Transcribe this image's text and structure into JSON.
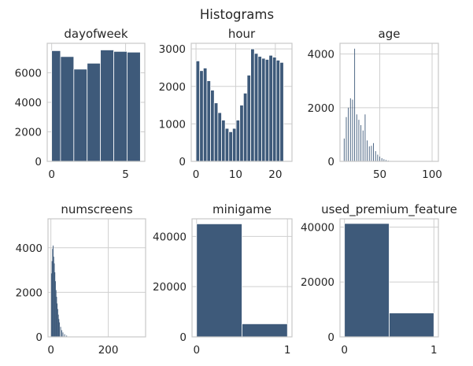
{
  "figure": {
    "suptitle": "Histograms"
  },
  "chart_data": [
    {
      "type": "bar",
      "title": "dayofweek",
      "xlabel": "",
      "ylabel": "",
      "xlim": [
        -0.3,
        6.3
      ],
      "ylim": [
        0,
        8000
      ],
      "xticks": [
        0,
        5
      ],
      "yticks": [
        0,
        2000,
        4000,
        6000
      ],
      "grid": true,
      "bins": [
        {
          "x0": 0.0,
          "x1": 0.6,
          "value": 7500
        },
        {
          "x0": 0.6,
          "x1": 1.5,
          "value": 7100
        },
        {
          "x0": 1.5,
          "x1": 2.4,
          "value": 6250
        },
        {
          "x0": 2.4,
          "x1": 3.3,
          "value": 6650
        },
        {
          "x0": 3.3,
          "x1": 4.2,
          "value": 7550
        },
        {
          "x0": 4.2,
          "x1": 5.1,
          "value": 7450
        },
        {
          "x0": 5.1,
          "x1": 6.0,
          "value": 7400
        }
      ]
    },
    {
      "type": "bar",
      "title": "hour",
      "xlabel": "",
      "ylabel": "",
      "xlim": [
        -1.2,
        24.2
      ],
      "ylim": [
        0,
        3150
      ],
      "xticks": [
        0,
        10,
        20
      ],
      "yticks": [
        0,
        1000,
        2000,
        3000
      ],
      "grid": true,
      "bins": [
        {
          "x0": 0.0,
          "x1": 0.92,
          "value": 2680
        },
        {
          "x0": 0.92,
          "x1": 1.84,
          "value": 2420
        },
        {
          "x0": 1.84,
          "x1": 2.76,
          "value": 2490
        },
        {
          "x0": 2.76,
          "x1": 3.68,
          "value": 2150
        },
        {
          "x0": 3.68,
          "x1": 4.6,
          "value": 1900
        },
        {
          "x0": 4.6,
          "x1": 5.52,
          "value": 1560
        },
        {
          "x0": 5.52,
          "x1": 6.44,
          "value": 1300
        },
        {
          "x0": 6.44,
          "x1": 7.36,
          "value": 1100
        },
        {
          "x0": 7.36,
          "x1": 8.28,
          "value": 880
        },
        {
          "x0": 8.28,
          "x1": 9.2,
          "value": 790
        },
        {
          "x0": 9.2,
          "x1": 10.12,
          "value": 880
        },
        {
          "x0": 10.12,
          "x1": 11.04,
          "value": 1100
        },
        {
          "x0": 11.04,
          "x1": 11.96,
          "value": 1500
        },
        {
          "x0": 11.96,
          "x1": 12.88,
          "value": 1820
        },
        {
          "x0": 12.88,
          "x1": 13.8,
          "value": 2300
        },
        {
          "x0": 13.8,
          "x1": 14.72,
          "value": 3000
        },
        {
          "x0": 14.72,
          "x1": 15.64,
          "value": 2880
        },
        {
          "x0": 15.64,
          "x1": 16.56,
          "value": 2800
        },
        {
          "x0": 16.56,
          "x1": 17.48,
          "value": 2750
        },
        {
          "x0": 17.48,
          "x1": 18.4,
          "value": 2720
        },
        {
          "x0": 18.4,
          "x1": 19.32,
          "value": 2830
        },
        {
          "x0": 19.32,
          "x1": 20.24,
          "value": 2780
        },
        {
          "x0": 20.24,
          "x1": 21.16,
          "value": 2700
        },
        {
          "x0": 21.16,
          "x1": 22.08,
          "value": 2640
        }
      ]
    },
    {
      "type": "bar",
      "title": "age",
      "xlabel": "",
      "ylabel": "",
      "xlim": [
        12,
        106
      ],
      "ylim": [
        0,
        4400
      ],
      "xticks": [
        50,
        100
      ],
      "yticks": [
        0,
        2000,
        4000
      ],
      "grid": true,
      "spikes": [
        {
          "x": 16,
          "value": 850
        },
        {
          "x": 18,
          "value": 1650
        },
        {
          "x": 20,
          "value": 2000
        },
        {
          "x": 22,
          "value": 2350
        },
        {
          "x": 24,
          "value": 2300
        },
        {
          "x": 26,
          "value": 4200
        },
        {
          "x": 28,
          "value": 1750
        },
        {
          "x": 30,
          "value": 1550
        },
        {
          "x": 32,
          "value": 1350
        },
        {
          "x": 34,
          "value": 1150
        },
        {
          "x": 36,
          "value": 1750
        },
        {
          "x": 38,
          "value": 780
        },
        {
          "x": 40,
          "value": 560
        },
        {
          "x": 42,
          "value": 580
        },
        {
          "x": 44,
          "value": 680
        },
        {
          "x": 46,
          "value": 380
        },
        {
          "x": 48,
          "value": 250
        },
        {
          "x": 50,
          "value": 180
        },
        {
          "x": 52,
          "value": 120
        },
        {
          "x": 54,
          "value": 80
        },
        {
          "x": 56,
          "value": 50
        },
        {
          "x": 58,
          "value": 30
        },
        {
          "x": 60,
          "value": 15
        }
      ]
    },
    {
      "type": "bar",
      "title": "numscreens",
      "xlabel": "",
      "ylabel": "",
      "xlim": [
        -10,
        330
      ],
      "ylim": [
        0,
        5300
      ],
      "xticks": [
        0,
        200
      ],
      "yticks": [
        0,
        2000,
        4000
      ],
      "grid": true,
      "spikes": [
        {
          "x": 2,
          "value": 2850
        },
        {
          "x": 4,
          "value": 3400
        },
        {
          "x": 6,
          "value": 3950
        },
        {
          "x": 8,
          "value": 4100
        },
        {
          "x": 10,
          "value": 3600
        },
        {
          "x": 12,
          "value": 3300
        },
        {
          "x": 14,
          "value": 2900
        },
        {
          "x": 16,
          "value": 2500
        },
        {
          "x": 18,
          "value": 2100
        },
        {
          "x": 20,
          "value": 1800
        },
        {
          "x": 22,
          "value": 1500
        },
        {
          "x": 24,
          "value": 1250
        },
        {
          "x": 26,
          "value": 1000
        },
        {
          "x": 28,
          "value": 800
        },
        {
          "x": 30,
          "value": 650
        },
        {
          "x": 34,
          "value": 450
        },
        {
          "x": 38,
          "value": 300
        },
        {
          "x": 42,
          "value": 200
        },
        {
          "x": 48,
          "value": 120
        },
        {
          "x": 55,
          "value": 60
        }
      ]
    },
    {
      "type": "bar",
      "title": "minigame",
      "xlabel": "",
      "ylabel": "",
      "xlim": [
        -0.05,
        1.05
      ],
      "ylim": [
        0,
        47000
      ],
      "xticks": [
        0,
        1
      ],
      "yticks": [
        0,
        20000,
        40000
      ],
      "grid": true,
      "bins": [
        {
          "x0": 0.0,
          "x1": 0.5,
          "value": 45000
        },
        {
          "x0": 0.5,
          "x1": 1.0,
          "value": 5200
        }
      ]
    },
    {
      "type": "bar",
      "title": "used_premium_feature",
      "xlabel": "",
      "ylabel": "",
      "xlim": [
        -0.05,
        1.05
      ],
      "ylim": [
        0,
        43000
      ],
      "xticks": [
        0,
        1
      ],
      "yticks": [
        0,
        20000,
        40000
      ],
      "grid": true,
      "bins": [
        {
          "x0": 0.0,
          "x1": 0.5,
          "value": 41300
        },
        {
          "x0": 0.5,
          "x1": 1.0,
          "value": 8700
        }
      ]
    }
  ]
}
